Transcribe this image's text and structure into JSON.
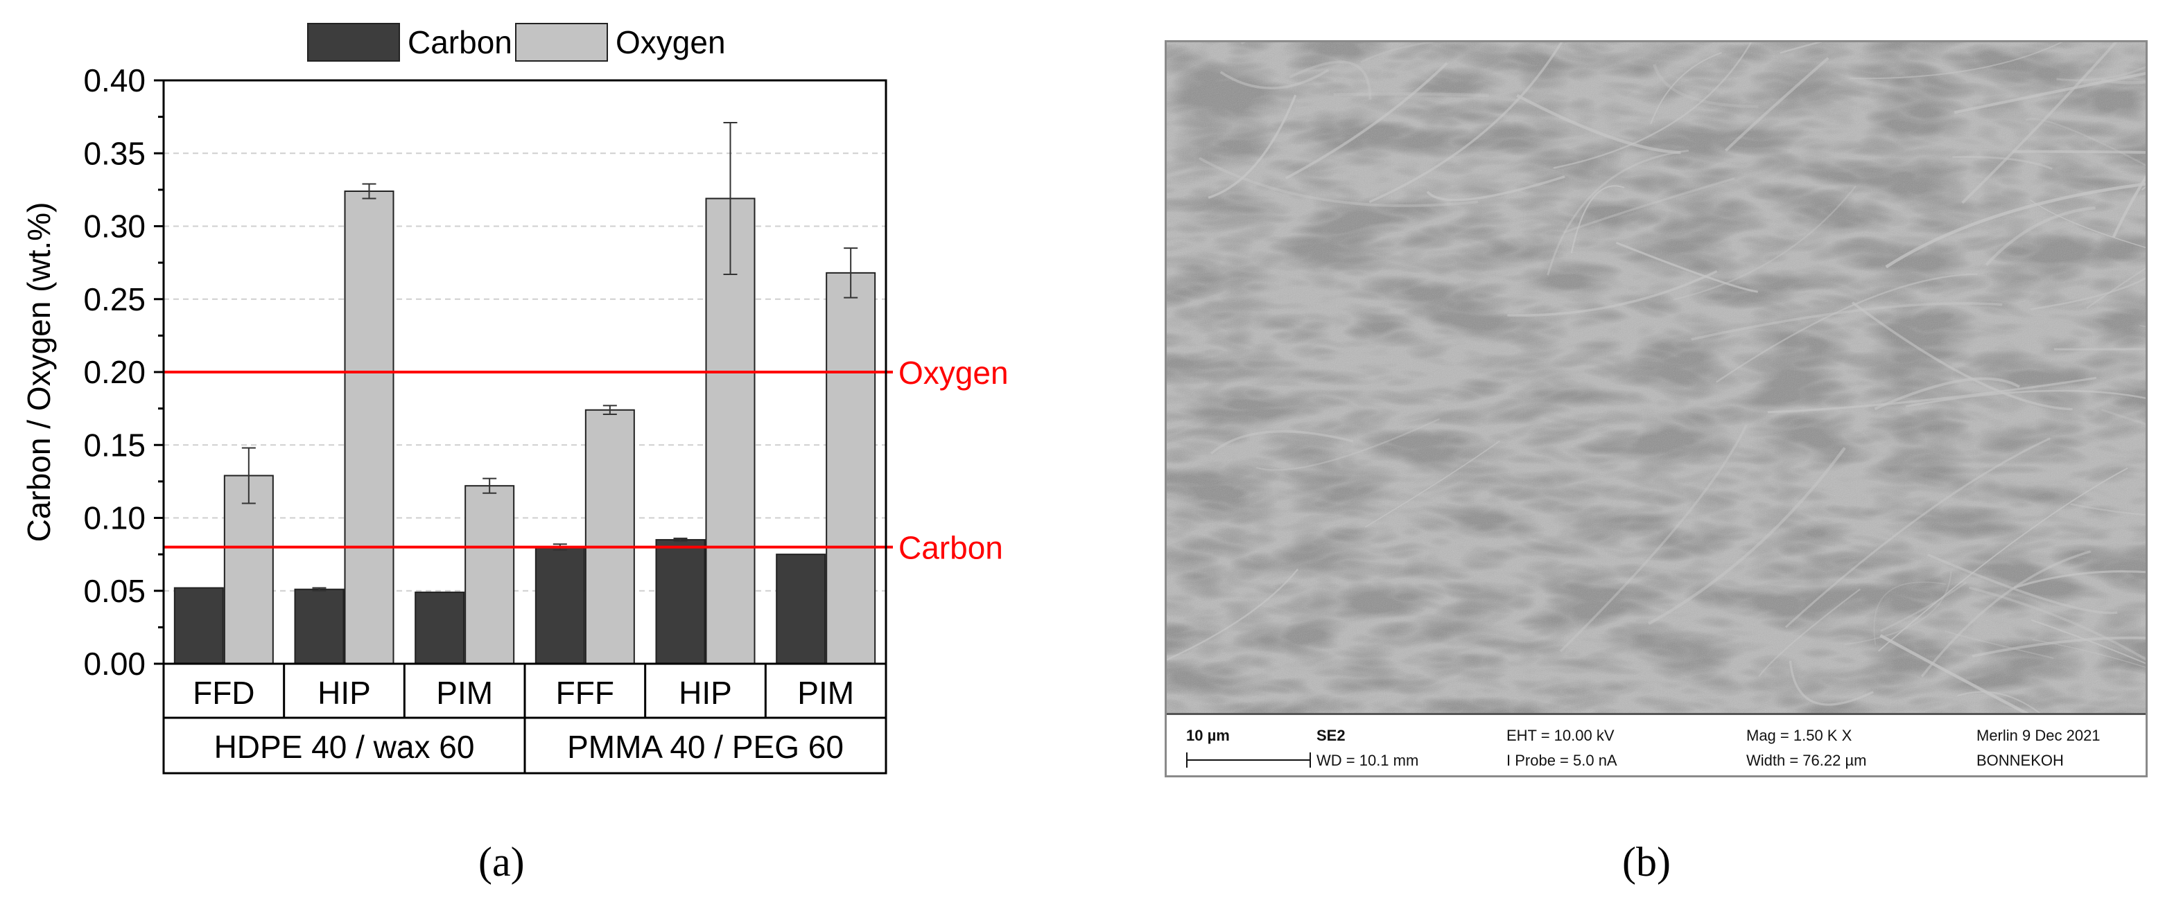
{
  "figure": {
    "caption_a": "(a)",
    "caption_b": "(b)"
  },
  "chart_data": {
    "type": "bar",
    "title": "",
    "ylabel": "Carbon / Oxygen (wt.%)",
    "xlabel": "",
    "ylim": [
      0,
      0.4
    ],
    "yticks": [
      "0.00",
      "0.05",
      "0.10",
      "0.15",
      "0.20",
      "0.25",
      "0.30",
      "0.35",
      "0.40"
    ],
    "grid": true,
    "legend_position": "top",
    "categories": [
      "FFD",
      "HIP",
      "PIM",
      "FFF",
      "HIP",
      "PIM"
    ],
    "groups": [
      {
        "label": "HDPE 40 / wax 60",
        "span": [
          0,
          2
        ]
      },
      {
        "label": "PMMA 40 / PEG 60",
        "span": [
          3,
          5
        ]
      }
    ],
    "series": [
      {
        "name": "Carbon",
        "color": "#3d3d3d",
        "values": [
          0.052,
          0.051,
          0.049,
          0.08,
          0.085,
          0.075
        ],
        "errors": [
          0.0,
          0.001,
          0.0,
          0.002,
          0.001,
          0.0
        ]
      },
      {
        "name": "Oxygen",
        "color": "#c3c3c3",
        "values": [
          0.129,
          0.324,
          0.122,
          0.174,
          0.319,
          0.268
        ],
        "errors": [
          0.019,
          0.005,
          0.005,
          0.003,
          0.052,
          0.017
        ]
      }
    ],
    "reference_lines": [
      {
        "label": "Oxygen",
        "value": 0.2,
        "color": "#ff0000"
      },
      {
        "label": "Carbon",
        "value": 0.08,
        "color": "#ff0000"
      }
    ]
  },
  "sem": {
    "scale_label": "10 µm",
    "detector": "SE2",
    "wd": "WD = 10.1 mm",
    "eht": "EHT = 10.00 kV",
    "probe": "I Probe =    5.0 nA",
    "mag": "Mag =    1.50 K X",
    "width": "Width = 76.22 µm",
    "instrument": "Merlin  9 Dec 2021",
    "operator": "BONNEKOH"
  }
}
